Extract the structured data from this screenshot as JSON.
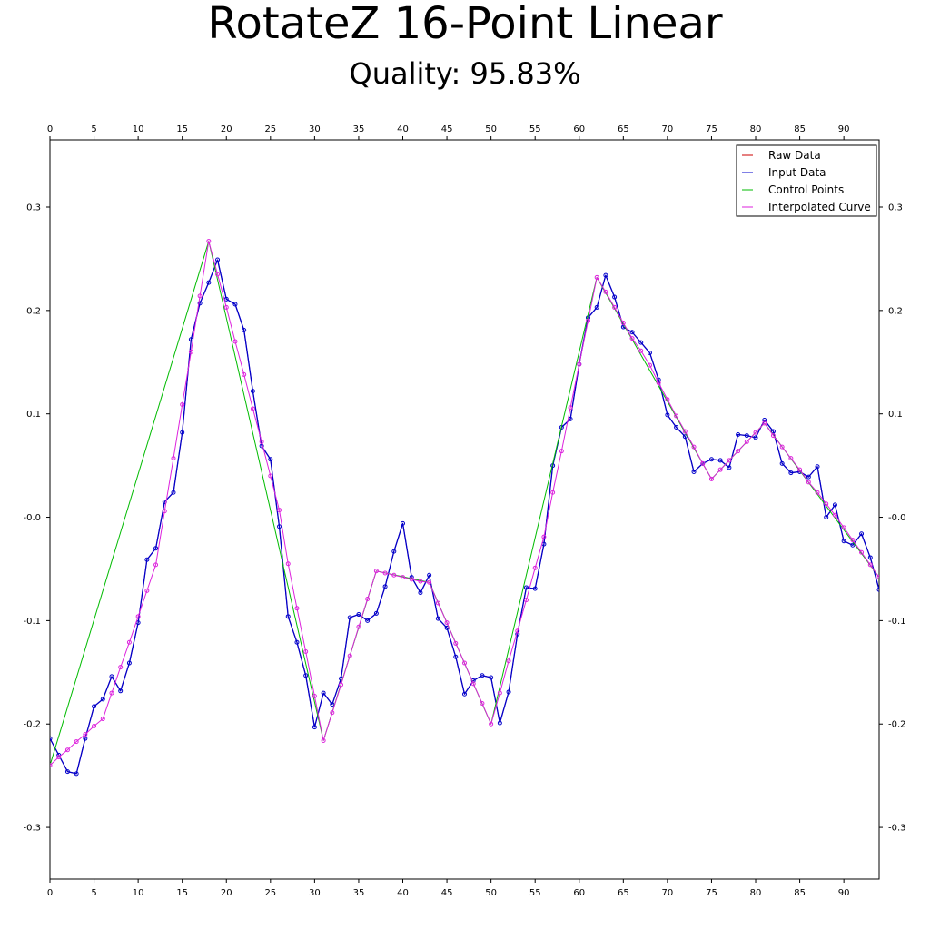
{
  "chart_data": {
    "type": "line",
    "title": "RotateZ 16-Point Linear",
    "subtitle": "Quality: 95.83%",
    "xlabel": "",
    "ylabel": "",
    "xlim": [
      0,
      94
    ],
    "ylim": [
      -0.35,
      0.365
    ],
    "x_ticks": [
      0,
      5,
      10,
      15,
      20,
      25,
      30,
      35,
      40,
      45,
      50,
      55,
      60,
      65,
      70,
      75,
      80,
      85,
      90
    ],
    "y_ticks": [
      -0.3,
      -0.2,
      -0.1,
      0.0,
      0.1,
      0.2,
      0.3
    ],
    "y_tick_labels": [
      "-0.3",
      "-0.2",
      "-0.1",
      "-0.0",
      "0.1",
      "0.2",
      "0.3"
    ],
    "grid": false,
    "legend_position": "top-right",
    "series": [
      {
        "name": "Raw Data",
        "color": "#cc0000",
        "marker": "none",
        "values": [
          -0.214,
          -0.23,
          -0.246,
          -0.248,
          -0.214,
          -0.183,
          -0.176,
          -0.154,
          -0.168,
          -0.141,
          -0.102,
          -0.041,
          -0.03,
          0.015,
          0.024,
          0.082,
          0.172,
          0.207,
          0.227,
          0.249,
          0.211,
          0.206,
          0.181,
          0.122,
          0.069,
          0.056,
          -0.009,
          -0.096,
          -0.121,
          -0.153,
          -0.203,
          -0.17,
          -0.181,
          -0.156,
          -0.097,
          -0.094,
          -0.1,
          -0.093,
          -0.067,
          -0.033,
          -0.006,
          -0.058,
          -0.073,
          -0.056,
          -0.098,
          -0.107,
          -0.135,
          -0.171,
          -0.158,
          -0.153,
          -0.155,
          -0.199,
          -0.169,
          -0.113,
          -0.068,
          -0.069,
          -0.026,
          0.05,
          0.087,
          0.095,
          0.148,
          0.193,
          0.203,
          0.234,
          0.213,
          0.184,
          0.179,
          0.169,
          0.159,
          0.133,
          0.099,
          0.087,
          0.078,
          0.044,
          0.052,
          0.056,
          0.055,
          0.048,
          0.08,
          0.079,
          0.077,
          0.094,
          0.083,
          0.052,
          0.043,
          0.044,
          0.039,
          0.049,
          0.0,
          0.012,
          -0.023,
          -0.027,
          -0.016,
          -0.039,
          -0.07
        ]
      },
      {
        "name": "Input Data",
        "color": "#0000cc",
        "marker": "circle",
        "values": [
          -0.214,
          -0.23,
          -0.246,
          -0.248,
          -0.214,
          -0.183,
          -0.176,
          -0.154,
          -0.168,
          -0.141,
          -0.102,
          -0.041,
          -0.03,
          0.015,
          0.024,
          0.082,
          0.172,
          0.207,
          0.227,
          0.249,
          0.211,
          0.206,
          0.181,
          0.122,
          0.069,
          0.056,
          -0.009,
          -0.096,
          -0.121,
          -0.153,
          -0.203,
          -0.17,
          -0.181,
          -0.156,
          -0.097,
          -0.094,
          -0.1,
          -0.093,
          -0.067,
          -0.033,
          -0.006,
          -0.058,
          -0.073,
          -0.056,
          -0.098,
          -0.107,
          -0.135,
          -0.171,
          -0.158,
          -0.153,
          -0.155,
          -0.199,
          -0.169,
          -0.113,
          -0.068,
          -0.069,
          -0.026,
          0.05,
          0.087,
          0.095,
          0.148,
          0.193,
          0.203,
          0.234,
          0.213,
          0.184,
          0.179,
          0.169,
          0.159,
          0.133,
          0.099,
          0.087,
          0.078,
          0.044,
          0.052,
          0.056,
          0.055,
          0.048,
          0.08,
          0.079,
          0.077,
          0.094,
          0.083,
          0.052,
          0.043,
          0.044,
          0.039,
          0.049,
          0.0,
          0.012,
          -0.023,
          -0.027,
          -0.016,
          -0.039,
          -0.07
        ]
      },
      {
        "name": "Control Points",
        "color": "#00bb00",
        "marker": "none",
        "x": [
          0,
          18,
          31,
          37,
          43,
          50,
          62,
          75,
          81,
          94
        ],
        "values": [
          -0.24,
          0.267,
          -0.216,
          -0.052,
          -0.063,
          -0.2,
          0.232,
          0.037,
          0.091,
          -0.058
        ]
      },
      {
        "name": "Interpolated Curve",
        "color": "#dd22dd",
        "marker": "circle",
        "values": [
          -0.24,
          -0.232,
          -0.225,
          -0.217,
          -0.21,
          -0.202,
          -0.195,
          -0.17,
          -0.145,
          -0.121,
          -0.096,
          -0.071,
          -0.046,
          0.006,
          0.057,
          0.109,
          0.16,
          0.214,
          0.267,
          0.235,
          0.203,
          0.17,
          0.138,
          0.105,
          0.073,
          0.04,
          0.007,
          -0.045,
          -0.088,
          -0.13,
          -0.173,
          -0.216,
          -0.189,
          -0.162,
          -0.134,
          -0.106,
          -0.079,
          -0.052,
          -0.054,
          -0.056,
          -0.058,
          -0.06,
          -0.062,
          -0.063,
          -0.083,
          -0.102,
          -0.122,
          -0.141,
          -0.161,
          -0.18,
          -0.2,
          -0.17,
          -0.139,
          -0.11,
          -0.08,
          -0.049,
          -0.019,
          0.024,
          0.064,
          0.106,
          0.148,
          0.19,
          0.232,
          0.218,
          0.203,
          0.188,
          0.173,
          0.161,
          0.147,
          0.13,
          0.114,
          0.098,
          0.083,
          0.068,
          0.052,
          0.037,
          0.046,
          0.055,
          0.064,
          0.073,
          0.082,
          0.091,
          0.079,
          0.068,
          0.057,
          0.046,
          0.034,
          0.024,
          0.013,
          0.002,
          -0.01,
          -0.022,
          -0.034,
          -0.046,
          -0.058
        ]
      }
    ]
  }
}
